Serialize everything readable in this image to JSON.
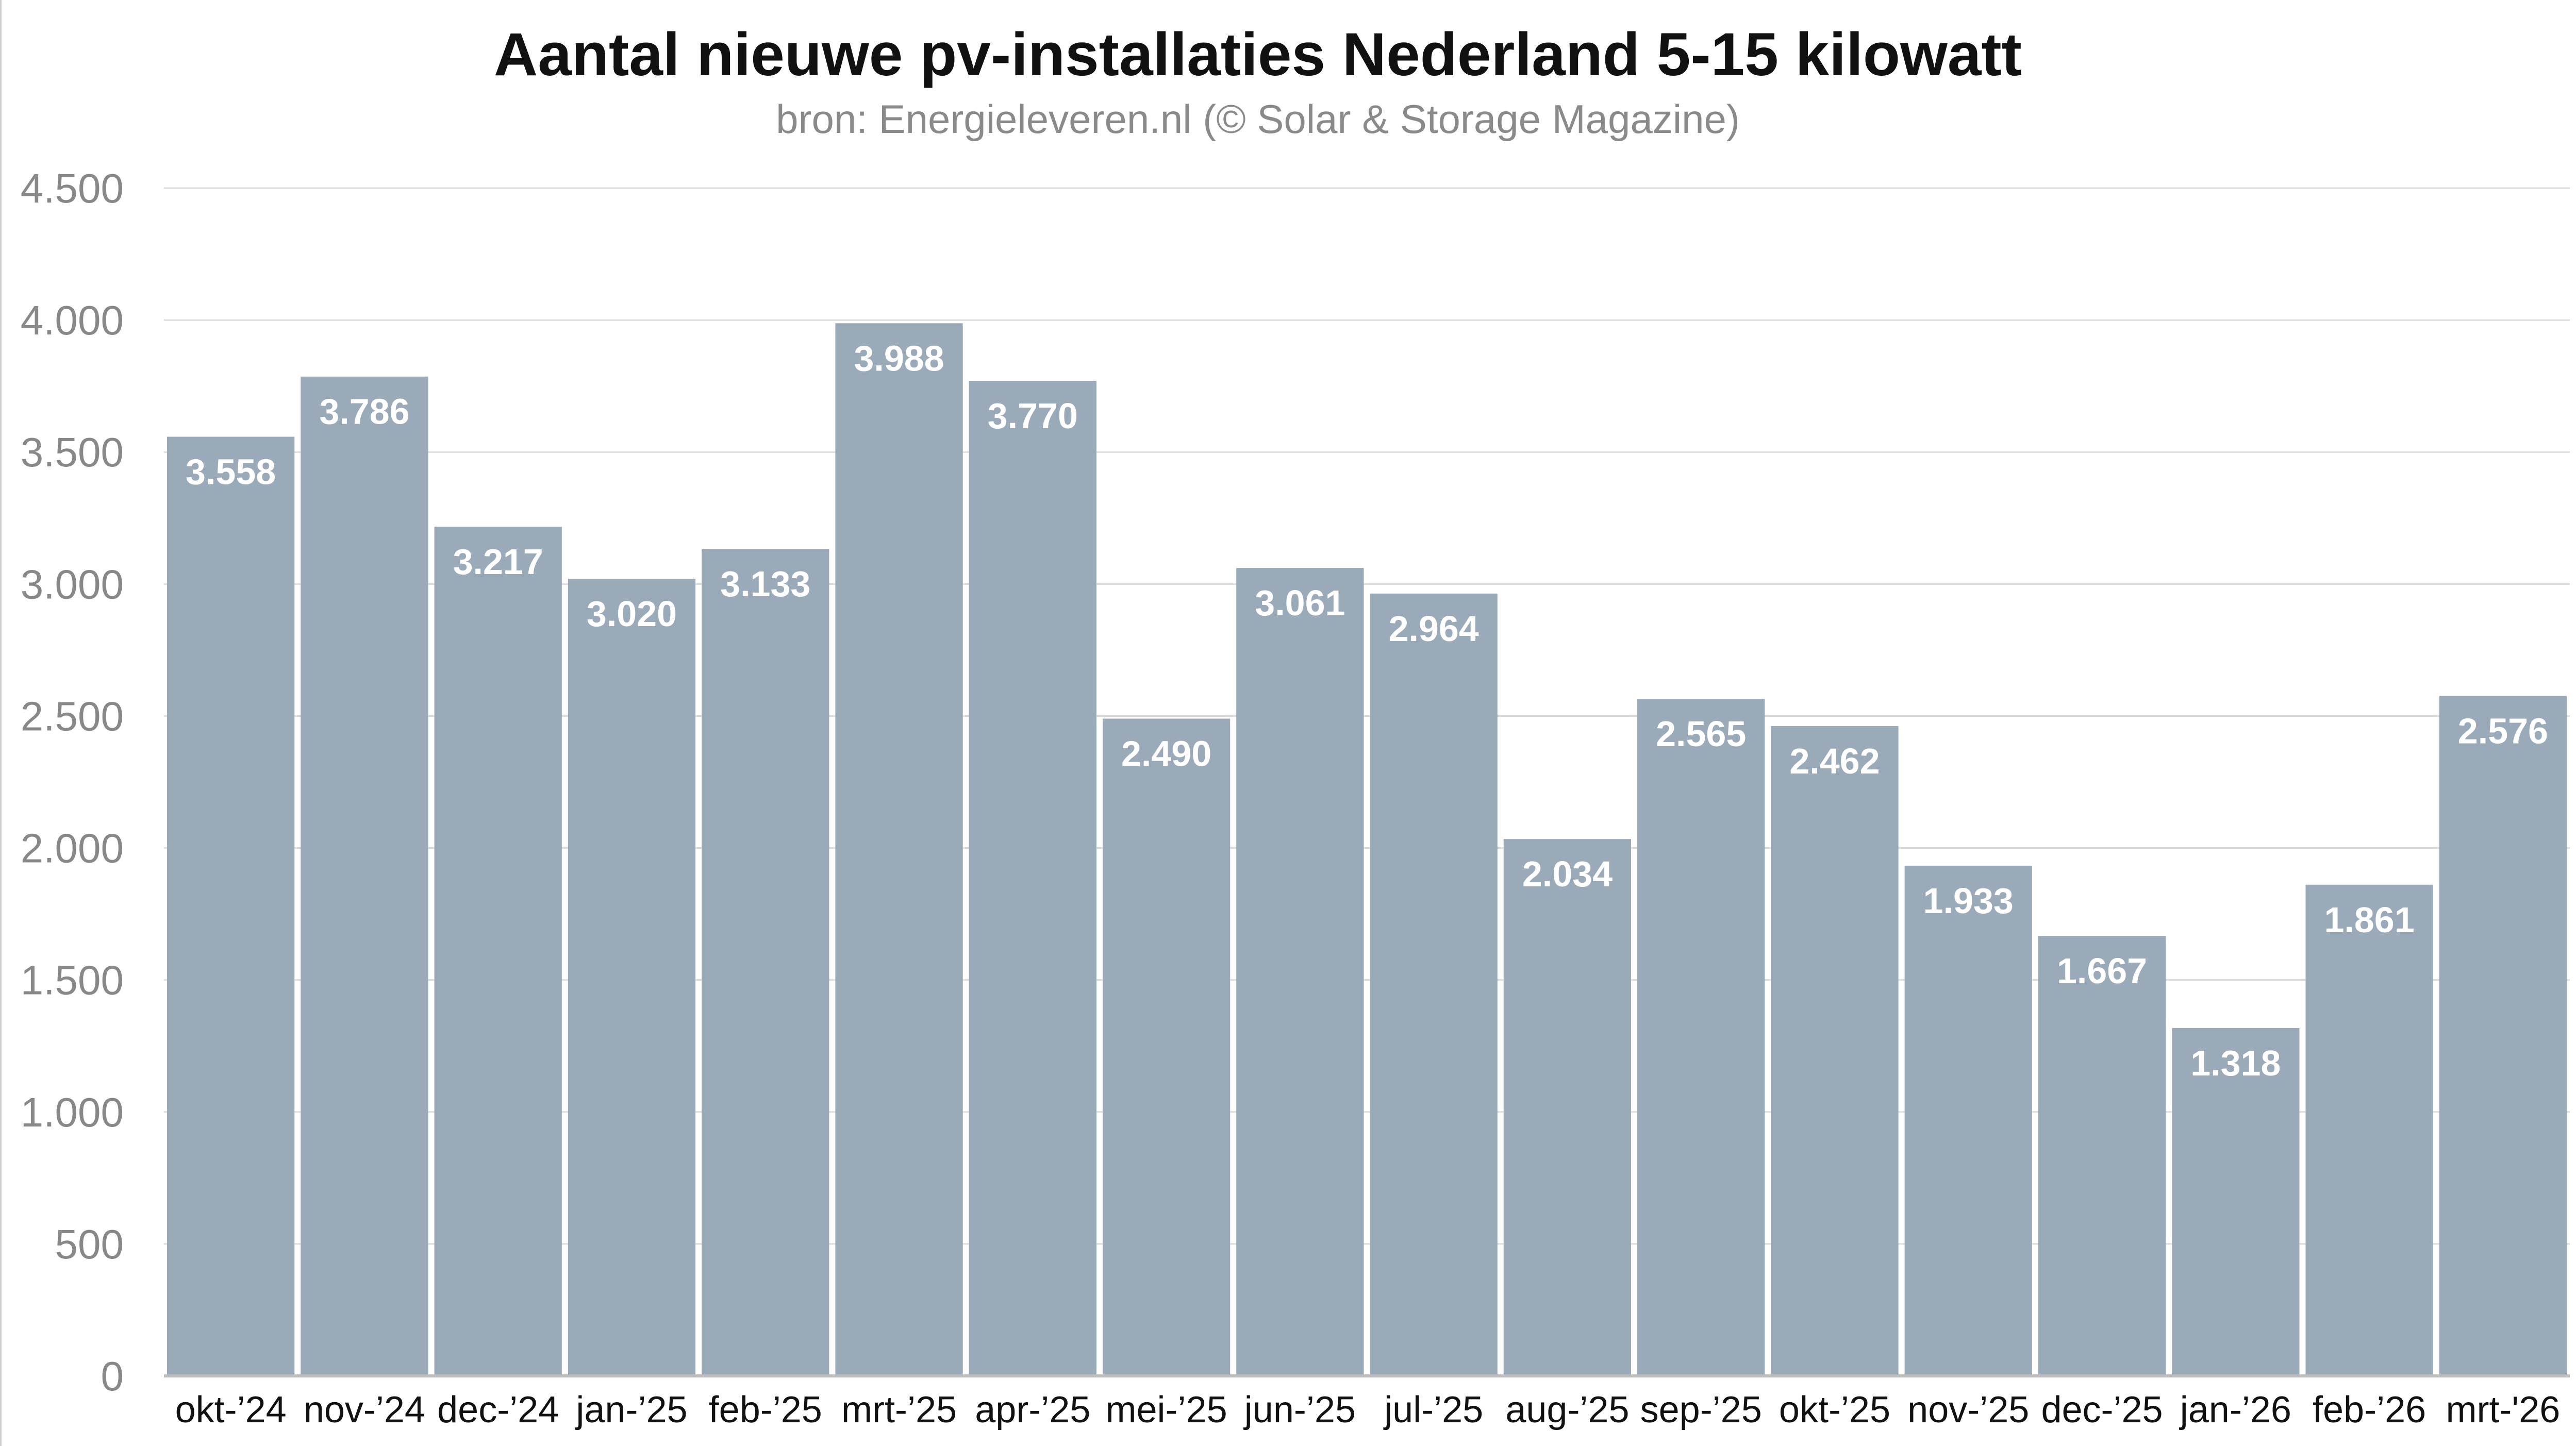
{
  "chart_data": {
    "type": "bar",
    "title": "Aantal nieuwe pv-installaties Nederland 5-15 kilowatt",
    "subtitle": "bron: Energieleveren.nl (© Solar & Storage Magazine)",
    "xlabel": "",
    "ylabel": "",
    "categories": [
      "okt-’24",
      "nov-’24",
      "dec-’24",
      "jan-’25",
      "feb-’25",
      "mrt-’25",
      "apr-’25",
      "mei-’25",
      "jun-’25",
      "jul-’25",
      "aug-’25",
      "sep-’25",
      "okt-’25",
      "nov-’25",
      "dec-’25",
      "jan-’26",
      "feb-’26",
      "mrt-'26"
    ],
    "values": [
      3558,
      3786,
      3217,
      3020,
      3133,
      3988,
      3770,
      2490,
      3061,
      2964,
      2034,
      2565,
      2462,
      1933,
      1667,
      1318,
      1861,
      2576
    ],
    "data_labels": [
      "3.558",
      "3.786",
      "3.217",
      "3.020",
      "3.133",
      "3.988",
      "3.770",
      "2.490",
      "3.061",
      "2.964",
      "2.034",
      "2.565",
      "2.462",
      "1.933",
      "1.667",
      "1.318",
      "1.861",
      "2.576"
    ],
    "ylim": [
      0,
      4500
    ],
    "yticks": [
      0,
      500,
      1000,
      1500,
      2000,
      2500,
      3000,
      3500,
      4000,
      4500
    ],
    "ytick_labels": [
      "0",
      "500",
      "1.000",
      "1.500",
      "2.000",
      "2.500",
      "3.000",
      "3.500",
      "4.000",
      "4.500"
    ],
    "grid": true,
    "legend": "none",
    "colors": {
      "bar": "#9aaab9",
      "bar_label": "#ffffff",
      "gridline": "#dcdcdc",
      "axis": "#bdbdbd",
      "tick_label": "#888888",
      "category_label": "#111111"
    }
  }
}
